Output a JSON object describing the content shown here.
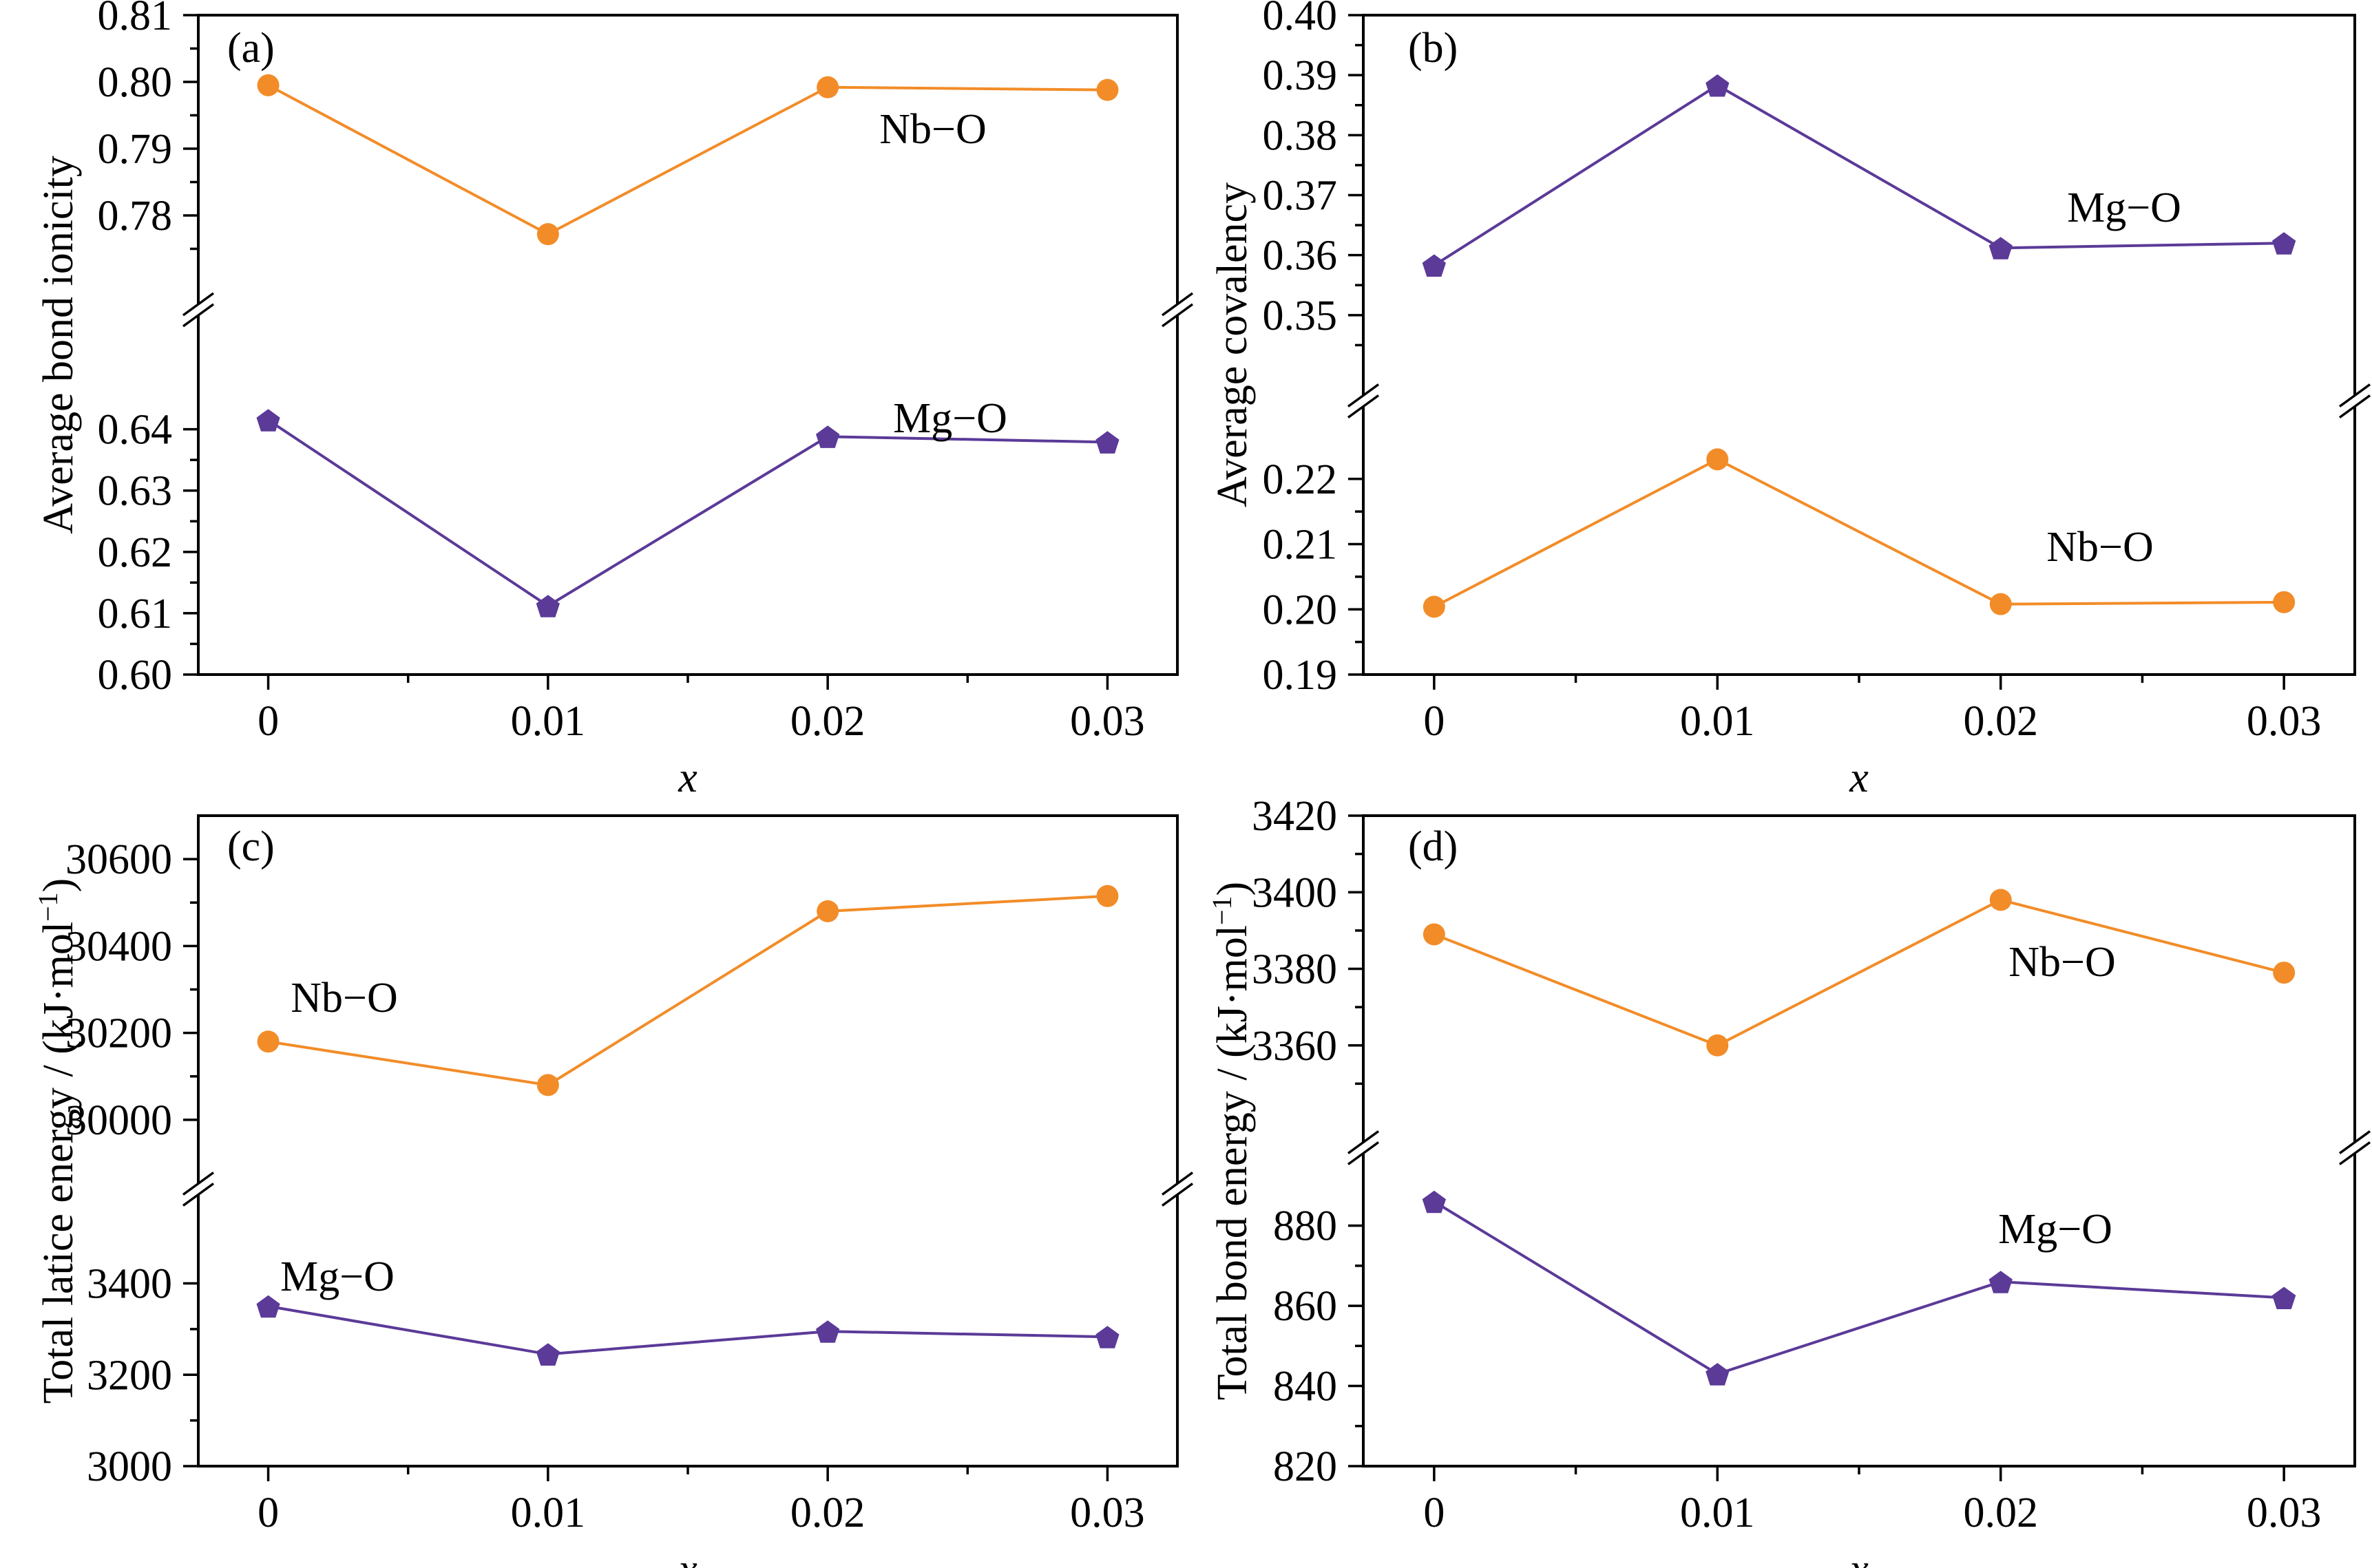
{
  "colors": {
    "nb_o": "#F28C28",
    "mg_o": "#5B3A98",
    "axis": "#000000"
  },
  "chart_data": [
    {
      "panel": "(a)",
      "type": "line",
      "xlabel": "x",
      "ylabel": "Average bond ionicity",
      "x": [
        0,
        0.01,
        0.02,
        0.03
      ],
      "x_ticklabels": [
        "0",
        "0.01",
        "0.02",
        "0.03"
      ],
      "xlim": [
        -0.0025,
        0.0325
      ],
      "broken_axis": true,
      "upper_ylim": [
        0.77,
        0.81
      ],
      "upper_yticks": [
        "0.78",
        "0.79",
        "0.80",
        "0.81"
      ],
      "lower_ylim": [
        0.6,
        0.655
      ],
      "lower_yticks": [
        "0.60",
        "0.61",
        "0.62",
        "0.63",
        "0.64"
      ],
      "series": [
        {
          "name": "Nb−O",
          "segment": "upper",
          "marker": "circle",
          "color": "#F28C28",
          "values": [
            0.7995,
            0.7772,
            0.7992,
            0.7988
          ]
        },
        {
          "name": "Mg−O",
          "segment": "lower",
          "marker": "pentagon",
          "color": "#5B3A98",
          "values": [
            0.6415,
            0.6112,
            0.6388,
            0.6379
          ]
        }
      ]
    },
    {
      "panel": "(b)",
      "type": "line",
      "xlabel": "x",
      "ylabel": "Average covalency",
      "x": [
        0,
        0.01,
        0.02,
        0.03
      ],
      "x_ticklabels": [
        "0",
        "0.01",
        "0.02",
        "0.03"
      ],
      "xlim": [
        -0.0025,
        0.0325
      ],
      "broken_axis": true,
      "upper_ylim": [
        0.34,
        0.4
      ],
      "upper_yticks": [
        "0.35",
        "0.36",
        "0.37",
        "0.38",
        "0.39",
        "0.40"
      ],
      "lower_ylim": [
        0.19,
        0.228
      ],
      "lower_yticks": [
        "0.19",
        "0.20",
        "0.21",
        "0.22"
      ],
      "series": [
        {
          "name": "Mg−O",
          "segment": "upper",
          "marker": "pentagon",
          "color": "#5B3A98",
          "values": [
            0.3583,
            0.3883,
            0.3612,
            0.362
          ]
        },
        {
          "name": "Nb−O",
          "segment": "lower",
          "marker": "circle",
          "color": "#F28C28",
          "values": [
            0.2004,
            0.223,
            0.2008,
            0.2011
          ]
        }
      ]
    },
    {
      "panel": "(c)",
      "type": "line",
      "xlabel": "x",
      "ylabel": "Total latice energy / (kJ·mol−1)",
      "ylabel_main": "Total latice energy / (kJ·mol",
      "ylabel_sup": "−1",
      "ylabel_end": ")",
      "x": [
        0,
        0.01,
        0.02,
        0.03
      ],
      "x_ticklabels": [
        "0",
        "0.01",
        "0.02",
        "0.03"
      ],
      "xlim": [
        -0.0025,
        0.0325
      ],
      "broken_axis": true,
      "upper_ylim": [
        29900,
        30700
      ],
      "upper_yticks": [
        "30000",
        "30200",
        "30400",
        "30600"
      ],
      "lower_ylim": [
        3000,
        3550
      ],
      "lower_yticks": [
        "3000",
        "3200",
        "3400"
      ],
      "series": [
        {
          "name": "Nb−O",
          "segment": "upper",
          "marker": "circle",
          "color": "#F28C28",
          "values": [
            30180,
            30080,
            30480,
            30515
          ]
        },
        {
          "name": "Mg−O",
          "segment": "lower",
          "marker": "pentagon",
          "color": "#5B3A98",
          "values": [
            3350,
            3245,
            3295,
            3283
          ]
        }
      ]
    },
    {
      "panel": "(d)",
      "type": "line",
      "xlabel": "x",
      "ylabel": "Total bond energy / (kJ·mol−1)",
      "ylabel_main": "Total bond energy / (kJ·mol",
      "ylabel_sup": "−1",
      "ylabel_end": ")",
      "x": [
        0,
        0.01,
        0.02,
        0.03
      ],
      "x_ticklabels": [
        "0",
        "0.01",
        "0.02",
        "0.03"
      ],
      "xlim": [
        -0.0025,
        0.0325
      ],
      "broken_axis": true,
      "upper_ylim": [
        3340,
        3420
      ],
      "upper_yticks": [
        "3360",
        "3380",
        "3400",
        "3420"
      ],
      "lower_ylim": [
        820,
        893
      ],
      "lower_yticks": [
        "820",
        "840",
        "860",
        "880"
      ],
      "series": [
        {
          "name": "Nb−O",
          "segment": "upper",
          "marker": "circle",
          "color": "#F28C28",
          "values": [
            3389,
            3360,
            3398,
            3379
          ]
        },
        {
          "name": "Mg−O",
          "segment": "lower",
          "marker": "pentagon",
          "color": "#5B3A98",
          "values": [
            886,
            843,
            866,
            862
          ]
        }
      ]
    }
  ]
}
